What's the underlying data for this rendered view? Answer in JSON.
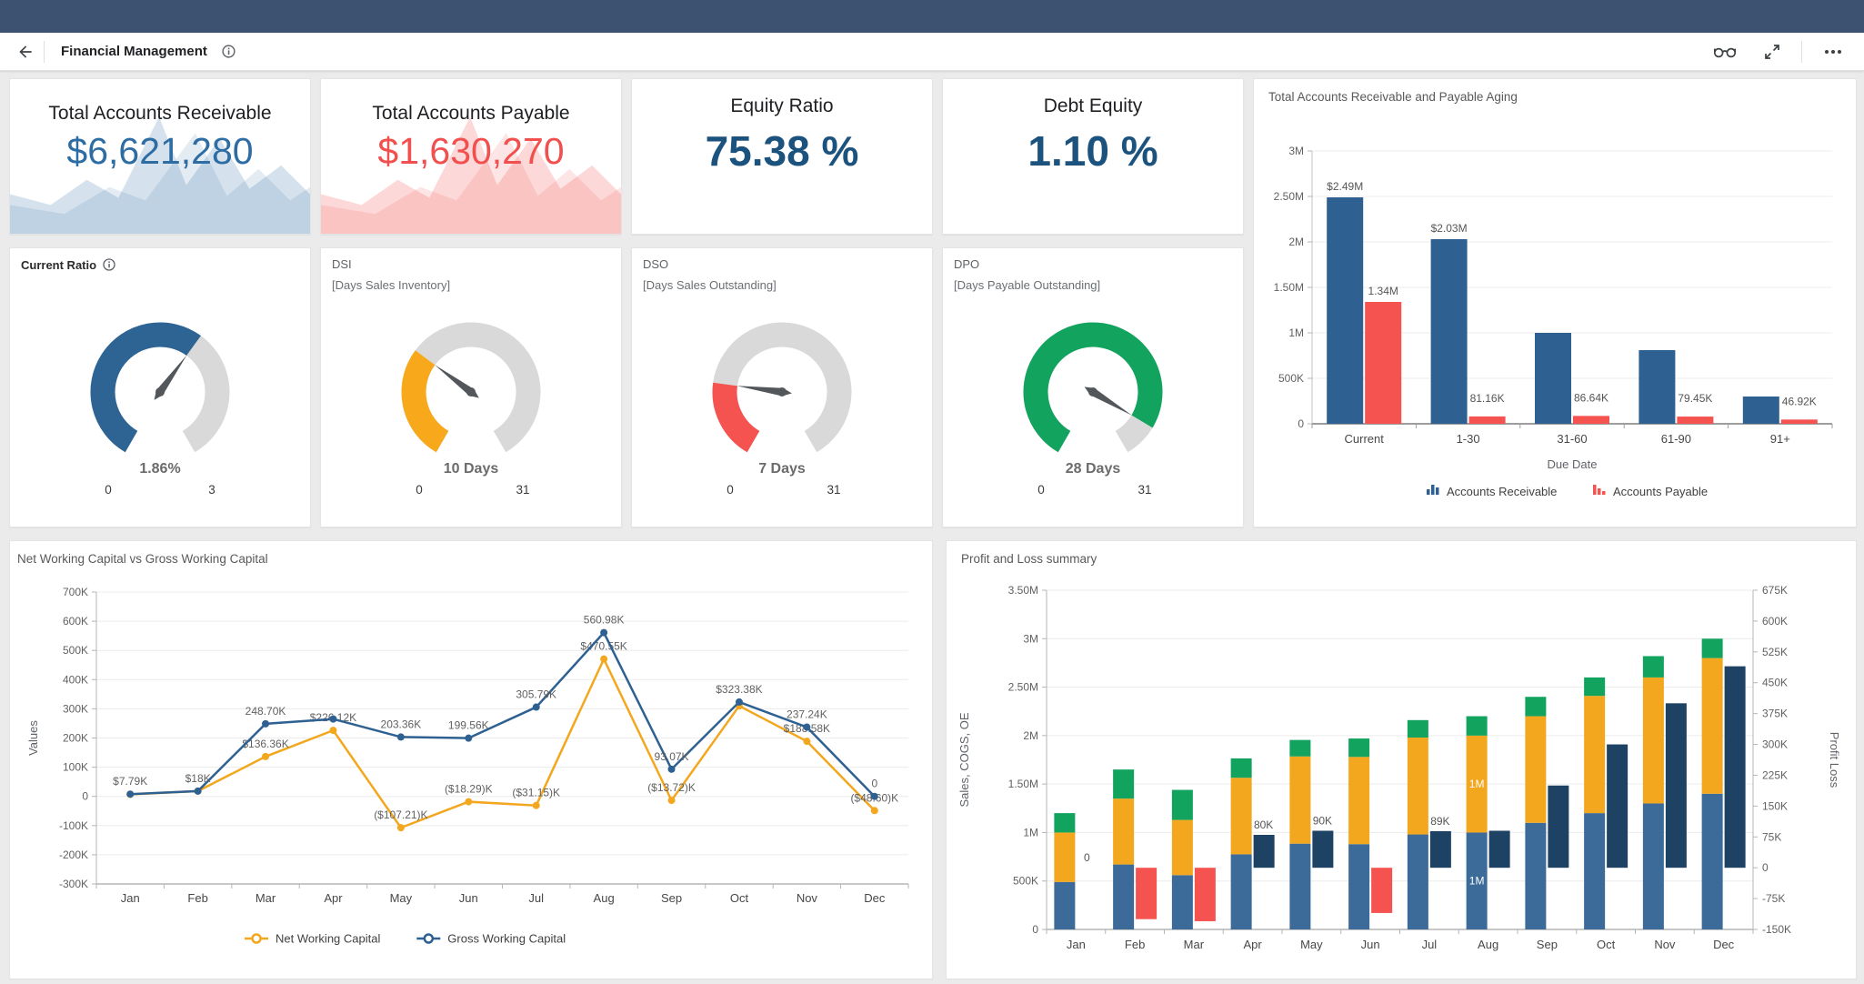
{
  "toolbar": {
    "title": "Financial Management"
  },
  "kpis": [
    {
      "title": "Total Accounts Receivable",
      "value": "$6,621,280",
      "color": "#2d6da4",
      "spark": "blue"
    },
    {
      "title": "Total Accounts Payable",
      "value": "$1,630,270",
      "color": "#f1504e",
      "spark": "red"
    },
    {
      "title": "Equity Ratio",
      "value": "75.38 %",
      "color": "#1b527e",
      "spark": "none"
    },
    {
      "title": "Debt Equity",
      "value": "1.10 %",
      "color": "#1b527e",
      "spark": "none"
    }
  ],
  "gauges": [
    {
      "title": "Current Ratio",
      "subtitle": "",
      "has_info": true,
      "value": 1.86,
      "display": "1.86%",
      "min": "0",
      "max": "3",
      "color": "#2d6494"
    },
    {
      "title": "DSI",
      "subtitle": "[Days Sales Inventory]",
      "has_info": false,
      "value": 10,
      "display": "10 Days",
      "min": "0",
      "max": "31",
      "color": "#f7a81b"
    },
    {
      "title": "DSO",
      "subtitle": "[Days Sales Outstanding]",
      "has_info": false,
      "value": 7,
      "display": "7 Days",
      "min": "0",
      "max": "31",
      "color": "#f4534f"
    },
    {
      "title": "DPO",
      "subtitle": "[Days Payable Outstanding]",
      "has_info": false,
      "value": 28,
      "display": "28 Days",
      "min": "0",
      "max": "31",
      "color": "#12a35e"
    }
  ],
  "chart_data": [
    {
      "id": "aging",
      "type": "bar",
      "title": "Total Accounts Receivable and Payable Aging",
      "categories": [
        "Current",
        "1-30",
        "31-60",
        "61-90",
        "91+"
      ],
      "series": [
        {
          "name": "Accounts Receivable",
          "color": "#2e6191",
          "values": [
            2490000,
            2030000,
            1000000,
            810000,
            300000
          ],
          "labels": [
            "$2.49M",
            "$2.03M",
            null,
            null,
            null
          ]
        },
        {
          "name": "Accounts Payable",
          "color": "#f4534f",
          "values": [
            1340000,
            81160,
            86640,
            79450,
            46920
          ],
          "labels": [
            "1.34M",
            "81.16K",
            "86.64K",
            "79.45K",
            "46.92K"
          ]
        }
      ],
      "xlabel": "Due Date",
      "ylim": [
        0,
        3000000
      ],
      "yticks": [
        "3M",
        "2.50M",
        "2M",
        "1.50M",
        "1M",
        "500K",
        "0"
      ],
      "legend_position": "bottom",
      "grid": true
    },
    {
      "id": "nwc",
      "type": "line",
      "title": "Net Working Capital vs Gross Working Capital",
      "x": [
        "Jan",
        "Feb",
        "Mar",
        "Apr",
        "May",
        "Jun",
        "Jul",
        "Aug",
        "Sep",
        "Oct",
        "Nov",
        "Dec"
      ],
      "ylabel": "Values",
      "ylim": [
        -300000,
        700000
      ],
      "yticks": [
        "700K",
        "600K",
        "500K",
        "400K",
        "300K",
        "200K",
        "100K",
        "0",
        "-100K",
        "-200K",
        "-300K"
      ],
      "series": [
        {
          "name": "Net Working Capital",
          "color": "#f2a71e",
          "values": [
            7000,
            18000,
            136360,
            226120,
            -107210,
            -18290,
            -31150,
            470550,
            -13720,
            310000,
            188580,
            -48600
          ],
          "labels": [
            null,
            null,
            "$136.36K",
            "$226.12K",
            "($107.21)K",
            "($18.29)K",
            "($31.15)K",
            "$470.55K",
            "($13.72)K",
            null,
            "$188.58K",
            "($48.60)K"
          ]
        },
        {
          "name": "Gross Working Capital",
          "color": "#2e6191",
          "values": [
            7790,
            18000,
            248700,
            265000,
            203360,
            199560,
            305790,
            560980,
            93070,
            323380,
            237240,
            0
          ],
          "labels": [
            "$7.79K",
            "$18K",
            "248.70K",
            null,
            "203.36K",
            "199.56K",
            "305.79K",
            "560.98K",
            "93.07K",
            "$323.38K",
            "237.24K",
            "0"
          ]
        }
      ],
      "legend_position": "bottom",
      "grid": true
    },
    {
      "id": "pnl",
      "type": "stacked-bar+bar",
      "title": "Profit and Loss summary",
      "x": [
        "Jan",
        "Feb",
        "Mar",
        "Apr",
        "May",
        "Jun",
        "Jul",
        "Aug",
        "Sep",
        "Oct",
        "Nov",
        "Dec"
      ],
      "left_axis": {
        "label": "Sales, COGS, OE",
        "lim": [
          0,
          3500000
        ],
        "ticks": [
          "3.50M",
          "3M",
          "2.50M",
          "2M",
          "1.50M",
          "1M",
          "500K",
          "0"
        ]
      },
      "right_axis": {
        "label": "Profit Loss",
        "lim": [
          -150000,
          675000
        ],
        "ticks": [
          "675K",
          "600K",
          "525K",
          "450K",
          "375K",
          "300K",
          "225K",
          "150K",
          "75K",
          "0",
          "-75K",
          "-150K"
        ]
      },
      "stack_series": [
        {
          "name": "Sales",
          "color": "#3c6b9a",
          "values": [
            490000,
            670000,
            560000,
            775000,
            885000,
            880000,
            980000,
            1000000,
            1100000,
            1200000,
            1300000,
            1400000
          ]
        },
        {
          "name": "COGS",
          "color": "#f2a71e",
          "values": [
            510000,
            680000,
            570000,
            790000,
            900000,
            900000,
            1000000,
            1000000,
            1100000,
            1210000,
            1300000,
            1400000
          ]
        },
        {
          "name": "OE",
          "color": "#12a35e",
          "values": [
            200000,
            300000,
            310000,
            200000,
            170000,
            190000,
            180000,
            200000,
            200000,
            190000,
            220000,
            200000
          ]
        }
      ],
      "profit_series": {
        "name": "Profit Loss",
        "pos_color": "#1e4263",
        "neg_color": "#f4534f",
        "values": [
          0,
          -125000,
          -130000,
          80000,
          90000,
          -110000,
          89000,
          90000,
          200000,
          300000,
          400000,
          490000
        ],
        "labels": [
          "0",
          null,
          null,
          "80K",
          "90K",
          null,
          "89K",
          null,
          null,
          null,
          null,
          null
        ]
      },
      "inbar_labels": [
        {
          "xi": 7,
          "si": 0,
          "text": "1M"
        },
        {
          "xi": 7,
          "si": 1,
          "text": "1M"
        }
      ]
    }
  ]
}
